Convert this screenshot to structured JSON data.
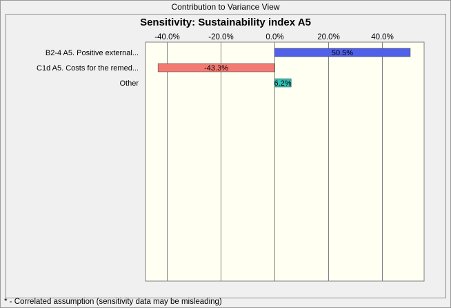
{
  "window": {
    "title": "Contribution to Variance View"
  },
  "footnote": "* - Correlated assumption (sensitivity data may be misleading)",
  "colors": {
    "plot_bg": "#fffff2",
    "positive_bar": "#5060e8",
    "negative_bar": "#f27a72",
    "other_bar": "#2ec4b8",
    "gridline": "#808080"
  },
  "chart_data": {
    "type": "bar",
    "orientation": "horizontal",
    "title": "Sensitivity: Sustainability index A5",
    "xlabel": "",
    "ylabel": "",
    "xlim": [
      -0.5,
      0.55
    ],
    "ticks": [
      -0.4,
      -0.2,
      0.0,
      0.2,
      0.4
    ],
    "tick_labels": [
      "-40.0%",
      "-20.0%",
      "0.0%",
      "20.0%",
      "40.0%"
    ],
    "tick_position": "top",
    "grid": true,
    "categories": [
      "B2-4 A5.  Positive external...",
      "C1d A5. Costs for the remed...",
      "Other"
    ],
    "values": [
      0.505,
      -0.433,
      0.062
    ],
    "value_labels": [
      "50.5%",
      "-43.3%",
      "6.2%"
    ],
    "bar_colors": [
      "#5060e8",
      "#f27a72",
      "#2ec4b8"
    ]
  }
}
